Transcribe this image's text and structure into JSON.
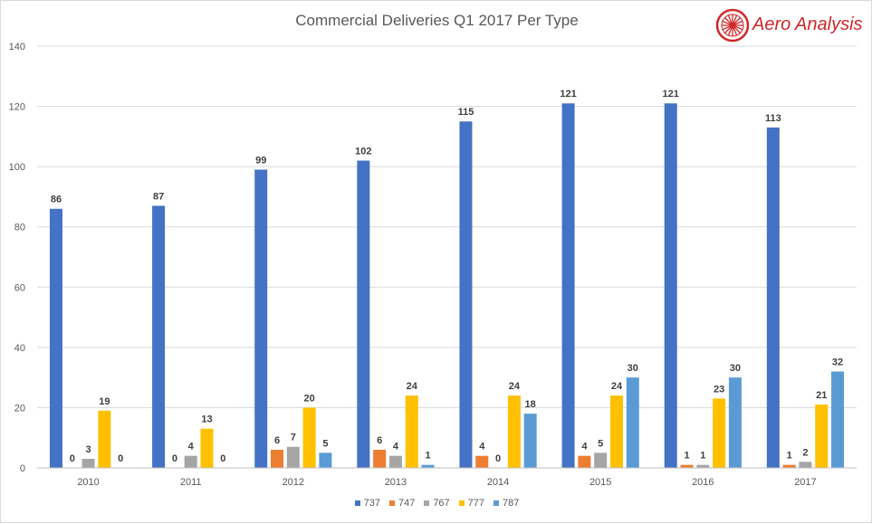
{
  "chart_data": {
    "type": "bar",
    "title": "Commercial Deliveries Q1 2017 Per Type",
    "xlabel": "",
    "ylabel": "",
    "ylim": [
      0,
      140
    ],
    "yticks": [
      0,
      20,
      40,
      60,
      80,
      100,
      120,
      140
    ],
    "categories": [
      "2010",
      "2011",
      "2012",
      "2013",
      "2014",
      "2015",
      "2016",
      "2017"
    ],
    "series": [
      {
        "name": "737",
        "color": "#4472c4",
        "values": [
          86,
          87,
          99,
          102,
          115,
          121,
          121,
          113
        ],
        "labels": [
          "86",
          "87",
          "99",
          "102",
          "115",
          "121",
          "121",
          "113"
        ]
      },
      {
        "name": "747",
        "color": "#ed7d31",
        "values": [
          0,
          0,
          6,
          6,
          4,
          4,
          1,
          1
        ],
        "labels": [
          "0",
          "0",
          "6",
          "6",
          "4",
          "4",
          "1",
          "1"
        ]
      },
      {
        "name": "767",
        "color": "#a5a5a5",
        "values": [
          3,
          4,
          7,
          4,
          0,
          5,
          1,
          2
        ],
        "labels": [
          "3",
          "4",
          "7",
          "4",
          "0",
          "5",
          "1",
          "2"
        ]
      },
      {
        "name": "777",
        "color": "#ffc000",
        "values": [
          19,
          13,
          20,
          24,
          24,
          24,
          23,
          21
        ],
        "labels": [
          "19",
          "13",
          "20",
          "24",
          "24",
          "24",
          "23",
          "21"
        ]
      },
      {
        "name": "787",
        "color": "#5b9bd5",
        "values": [
          0,
          0,
          5,
          1,
          18,
          30,
          30,
          32
        ],
        "labels": [
          "0",
          "0",
          "5",
          "1",
          "18",
          "30",
          "30",
          "32"
        ]
      }
    ],
    "grid": true,
    "legend": "bottom"
  },
  "logo": {
    "text": "Aero Analysis",
    "color": "#d0282a"
  }
}
